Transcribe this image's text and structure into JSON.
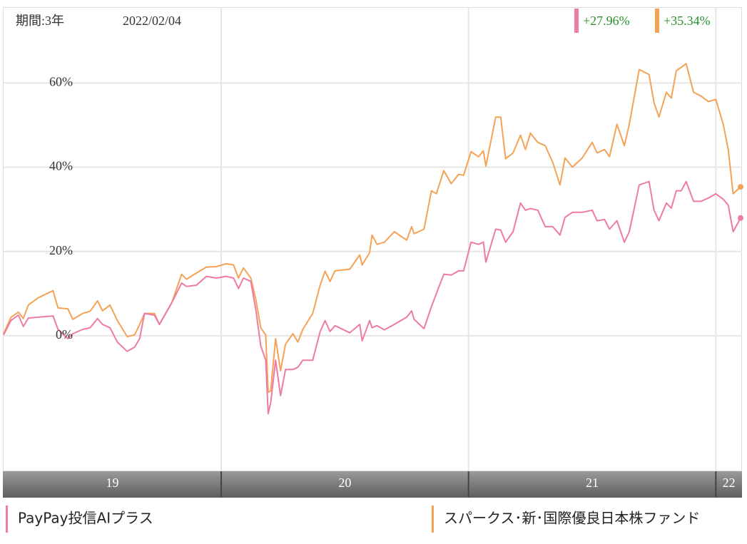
{
  "chart_data": {
    "type": "line",
    "period_label": "期間:3年",
    "date": "2022/02/04",
    "x": [
      2019.12,
      2019.15,
      2019.18,
      2019.2,
      2019.22,
      2019.26,
      2019.32,
      2019.34,
      2019.38,
      2019.4,
      2019.44,
      2019.47,
      2019.5,
      2019.52,
      2019.55,
      2019.58,
      2019.62,
      2019.65,
      2019.67,
      2019.69,
      2019.73,
      2019.75,
      2019.8,
      2019.84,
      2019.86,
      2019.9,
      2019.94,
      2019.98,
      2020.02,
      2020.05,
      2020.07,
      2020.09,
      2020.12,
      2020.14,
      2020.16,
      2020.18,
      2020.19,
      2020.2,
      2020.22,
      2020.24,
      2020.26,
      2020.29,
      2020.31,
      2020.33,
      2020.37,
      2020.4,
      2020.42,
      2020.44,
      2020.46,
      2020.52,
      2020.56,
      2020.57,
      2020.6,
      2020.61,
      2020.63,
      2020.66,
      2020.7,
      2020.75,
      2020.77,
      2020.78,
      2020.82,
      2020.85,
      2020.87,
      2020.9,
      2020.93,
      2020.96,
      2020.98,
      2021.01,
      2021.04,
      2021.06,
      2021.07,
      2021.11,
      2021.13,
      2021.15,
      2021.18,
      2021.21,
      2021.23,
      2021.25,
      2021.28,
      2021.31,
      2021.34,
      2021.37,
      2021.39,
      2021.42,
      2021.46,
      2021.5,
      2021.52,
      2021.55,
      2021.57,
      2021.6,
      2021.63,
      2021.65,
      2021.69,
      2021.73,
      2021.75,
      2021.77,
      2021.8,
      2021.82,
      2021.84,
      2021.86,
      2021.88,
      2021.91,
      2021.94,
      2021.97,
      2022.0,
      2022.03,
      2022.05,
      2022.07,
      2022.1
    ],
    "xlim": [
      2019.12,
      2022.1
    ],
    "xticks": [
      2020,
      2021,
      2022
    ],
    "year_labels": [
      "19",
      "20",
      "21",
      "22"
    ],
    "ylim": [
      -32,
      78
    ],
    "yticks": [
      {
        "value": 0,
        "label": "0%"
      },
      {
        "value": 20,
        "label": "20%"
      },
      {
        "value": 40,
        "label": "40%"
      },
      {
        "value": 60,
        "label": "60%"
      }
    ],
    "grid": true,
    "series": [
      {
        "name": "PayPay投信AIプラス",
        "color": "#ee7aa6",
        "last_label": "+27.96%",
        "values": [
          0.2,
          3.6,
          4.9,
          2.2,
          4.2,
          4.4,
          4.7,
          1.5,
          -0.7,
          0.5,
          1.5,
          1.9,
          4.1,
          2.7,
          1.9,
          -1.5,
          -3.7,
          -2.7,
          -0.7,
          5.3,
          4.9,
          2.7,
          7.8,
          12.5,
          11.7,
          12.0,
          14.1,
          13.7,
          14.1,
          13.7,
          11.2,
          13.7,
          12.9,
          6.1,
          -2.4,
          -5.8,
          -18.5,
          -15.9,
          -5.8,
          -14.2,
          -8.0,
          -8.0,
          -7.5,
          -5.8,
          -5.8,
          1.0,
          3.6,
          1.0,
          2.4,
          0.7,
          2.7,
          -1.2,
          3.6,
          1.9,
          2.4,
          1.4,
          2.7,
          4.4,
          5.9,
          3.9,
          1.7,
          6.9,
          10.0,
          14.6,
          14.4,
          15.4,
          15.4,
          22.2,
          21.7,
          22.2,
          17.5,
          25.3,
          25.1,
          22.2,
          24.7,
          31.5,
          29.8,
          30.2,
          29.8,
          25.9,
          25.9,
          23.9,
          28.1,
          29.3,
          29.3,
          29.8,
          27.3,
          27.6,
          25.3,
          27.3,
          22.2,
          24.7,
          35.8,
          36.6,
          29.8,
          27.3,
          31.5,
          30.3,
          34.4,
          34.4,
          36.6,
          31.9,
          31.9,
          32.7,
          33.7,
          32.4,
          31.0,
          24.7,
          27.96
        ]
      },
      {
        "name": "スパークス･新･国際優良日本株ファンド",
        "color": "#f4a255",
        "last_label": "+35.34%",
        "values": [
          0.5,
          4.4,
          5.6,
          4.1,
          7.3,
          9.0,
          10.7,
          6.6,
          6.4,
          3.9,
          5.3,
          5.8,
          8.3,
          5.9,
          7.3,
          3.6,
          -0.2,
          0.2,
          2.7,
          5.3,
          5.3,
          2.7,
          7.8,
          14.6,
          13.4,
          14.9,
          16.3,
          16.4,
          17.1,
          16.8,
          13.7,
          16.1,
          13.7,
          8.6,
          1.9,
          0.2,
          -13.4,
          -13.1,
          -0.7,
          -8.3,
          -2.0,
          0.5,
          -1.5,
          1.5,
          5.3,
          12.0,
          15.3,
          12.9,
          15.4,
          15.8,
          19.2,
          16.8,
          19.7,
          23.9,
          21.7,
          22.2,
          24.7,
          22.7,
          25.9,
          24.2,
          25.3,
          34.4,
          33.7,
          39.2,
          36.1,
          38.3,
          38.1,
          43.7,
          42.5,
          43.9,
          40.3,
          51.9,
          51.9,
          42.0,
          43.4,
          47.6,
          44.2,
          48.1,
          45.9,
          45.1,
          41.2,
          35.8,
          42.2,
          40.0,
          42.2,
          45.9,
          43.4,
          44.2,
          42.5,
          50.2,
          45.1,
          50.2,
          63.2,
          62.0,
          55.3,
          51.9,
          57.8,
          56.4,
          62.9,
          63.7,
          64.6,
          57.8,
          56.9,
          55.6,
          56.1,
          50.2,
          44.2,
          33.7,
          35.34
        ]
      }
    ]
  }
}
